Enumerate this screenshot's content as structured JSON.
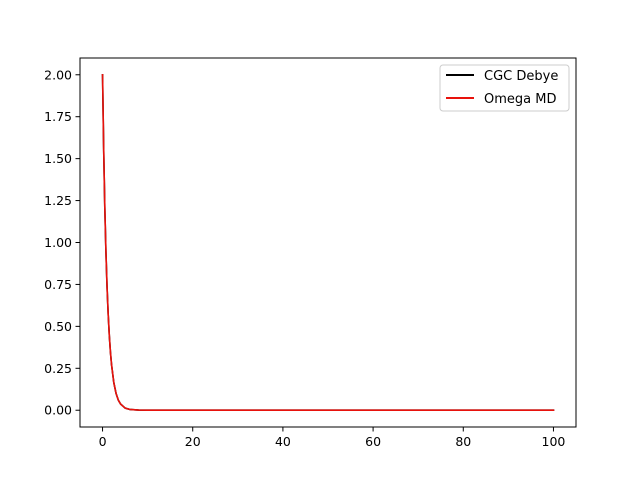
{
  "chart_data": {
    "type": "line",
    "title": "",
    "xlabel": "",
    "ylabel": "",
    "xlim": [
      -5,
      105
    ],
    "ylim": [
      -0.1,
      2.1
    ],
    "xticks": [
      0,
      20,
      40,
      60,
      80,
      100
    ],
    "xtick_labels": [
      "0",
      "20",
      "40",
      "60",
      "80",
      "100"
    ],
    "yticks": [
      0.0,
      0.25,
      0.5,
      0.75,
      1.0,
      1.25,
      1.5,
      1.75,
      2.0
    ],
    "ytick_labels": [
      "0.00",
      "0.25",
      "0.50",
      "0.75",
      "1.00",
      "1.25",
      "1.50",
      "1.75",
      "2.00"
    ],
    "grid": false,
    "legend_position": "top-right",
    "series": [
      {
        "name": "CGC Debye",
        "color": "#000000",
        "x": [
          0,
          0.25,
          0.5,
          0.75,
          1.0,
          1.25,
          1.5,
          1.75,
          2.0,
          2.5,
          3.0,
          3.5,
          4.0,
          5.0,
          6.0,
          8.0,
          10.0,
          15.0,
          20.0,
          30.0,
          40.0,
          50.0,
          60.0,
          70.0,
          80.0,
          90.0,
          100.0
        ],
        "y": [
          2.0,
          1.56,
          1.21,
          0.945,
          0.735,
          0.573,
          0.446,
          0.347,
          0.271,
          0.164,
          0.1,
          0.06,
          0.037,
          0.013,
          0.005,
          0.001,
          0.0,
          0.0,
          0.0,
          0.0,
          0.0,
          0.0,
          0.0,
          0.0,
          0.0,
          0.0,
          0.0
        ]
      },
      {
        "name": "Omega MD",
        "color": "#e8120c",
        "x": [
          0,
          0.25,
          0.5,
          0.75,
          1.0,
          1.25,
          1.5,
          1.75,
          2.0,
          2.5,
          3.0,
          3.5,
          4.0,
          5.0,
          6.0,
          8.0,
          10.0,
          15.0,
          20.0,
          30.0,
          40.0,
          50.0,
          60.0,
          70.0,
          80.0,
          90.0,
          100.0
        ],
        "y": [
          2.0,
          1.56,
          1.21,
          0.945,
          0.735,
          0.573,
          0.446,
          0.347,
          0.271,
          0.164,
          0.1,
          0.06,
          0.037,
          0.013,
          0.005,
          0.001,
          0.0,
          0.0,
          0.0,
          0.0,
          0.0,
          0.0,
          0.0,
          0.0,
          0.0,
          0.0,
          0.0
        ]
      }
    ]
  }
}
